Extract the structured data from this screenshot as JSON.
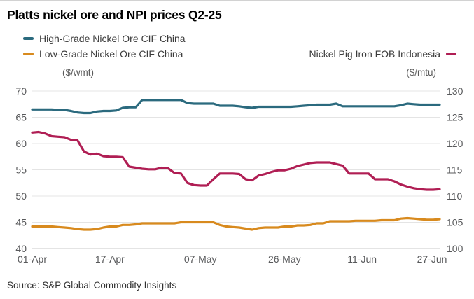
{
  "title": "Platts nickel ore and NPI prices Q2-25",
  "legend": {
    "high_grade": "High-Grade Nickel Ore CIF China",
    "low_grade": "Low-Grade Nickel Ore CIF China",
    "npi": "Nickel Pig Iron FOB Indonesia"
  },
  "axes": {
    "left_unit": "($/wmt)",
    "right_unit": "($/mtu)"
  },
  "source": "Source: S&P Global Commodity Insights",
  "colors": {
    "high_grade": "#2b6a7e",
    "low_grade": "#d88a1e",
    "npi": "#b01e54",
    "gridline": "#e4e4e4",
    "axis_line": "#c9c9c9",
    "tick_text": "#58595b"
  },
  "chart_data": {
    "type": "line",
    "x_mode": "daily-business-days",
    "x_points": 64,
    "x_tick_labels": [
      "01-Apr",
      "17-Apr",
      "07-May",
      "26-May",
      "11-Jun",
      "27-Jun"
    ],
    "x_tick_indices": [
      0,
      12,
      26,
      39,
      51,
      63
    ],
    "left_axis": {
      "min": 40,
      "max": 70,
      "ticks": [
        70,
        65,
        60,
        55,
        50,
        45,
        40
      ],
      "unit": "$/wmt"
    },
    "right_axis": {
      "min": 100,
      "max": 130,
      "ticks": [
        130,
        125,
        120,
        115,
        110,
        105,
        100
      ],
      "unit": "$/mtu"
    },
    "grid": "horizontal-only",
    "legend_position": "top",
    "series": [
      {
        "name": "High-Grade Nickel Ore CIF China",
        "axis": "left",
        "color_key": "high_grade",
        "values": [
          66.5,
          66.5,
          66.5,
          66.5,
          66.4,
          66.4,
          66.2,
          65.9,
          65.8,
          65.8,
          66.1,
          66.2,
          66.2,
          66.3,
          66.8,
          66.9,
          66.9,
          68.3,
          68.3,
          68.3,
          68.3,
          68.3,
          68.3,
          68.3,
          67.7,
          67.6,
          67.6,
          67.6,
          67.6,
          67.2,
          67.2,
          67.2,
          67.1,
          66.9,
          66.8,
          67.0,
          67.0,
          67.0,
          67.0,
          67.0,
          67.0,
          67.1,
          67.2,
          67.3,
          67.4,
          67.4,
          67.4,
          67.6,
          67.1,
          67.1,
          67.1,
          67.1,
          67.1,
          67.1,
          67.1,
          67.1,
          67.1,
          67.3,
          67.6,
          67.5,
          67.4,
          67.4,
          67.4,
          67.4
        ]
      },
      {
        "name": "Low-Grade Nickel Ore CIF China",
        "axis": "left",
        "color_key": "low_grade",
        "values": [
          44.2,
          44.2,
          44.2,
          44.2,
          44.1,
          44.0,
          43.9,
          43.7,
          43.6,
          43.6,
          43.7,
          44.0,
          44.2,
          44.2,
          44.5,
          44.5,
          44.6,
          44.8,
          44.8,
          44.8,
          44.8,
          44.8,
          44.8,
          45.0,
          45.0,
          45.0,
          45.0,
          45.0,
          45.0,
          44.5,
          44.2,
          44.1,
          44.0,
          43.8,
          43.6,
          43.9,
          44.0,
          44.0,
          44.0,
          44.2,
          44.2,
          44.4,
          44.4,
          44.5,
          44.8,
          44.8,
          45.2,
          45.2,
          45.2,
          45.2,
          45.3,
          45.3,
          45.3,
          45.3,
          45.4,
          45.4,
          45.4,
          45.7,
          45.8,
          45.7,
          45.6,
          45.5,
          45.5,
          45.6
        ]
      },
      {
        "name": "Nickel Pig Iron FOB Indonesia",
        "axis": "right",
        "color_key": "npi",
        "values": [
          122.1,
          122.2,
          121.9,
          121.4,
          121.3,
          121.2,
          120.7,
          120.6,
          118.5,
          117.9,
          118.1,
          117.6,
          117.5,
          117.5,
          117.4,
          115.6,
          115.4,
          115.2,
          115.1,
          115.1,
          115.4,
          115.3,
          114.4,
          114.3,
          112.5,
          112.1,
          112.0,
          112.0,
          113.2,
          114.3,
          114.3,
          114.3,
          114.2,
          113.2,
          113.0,
          113.9,
          114.2,
          114.6,
          114.9,
          114.9,
          115.2,
          115.7,
          116.0,
          116.3,
          116.4,
          116.4,
          116.4,
          116.1,
          115.8,
          114.3,
          114.3,
          114.3,
          114.3,
          113.2,
          113.2,
          113.2,
          112.8,
          112.2,
          111.8,
          111.5,
          111.3,
          111.2,
          111.2,
          111.3
        ]
      }
    ]
  }
}
